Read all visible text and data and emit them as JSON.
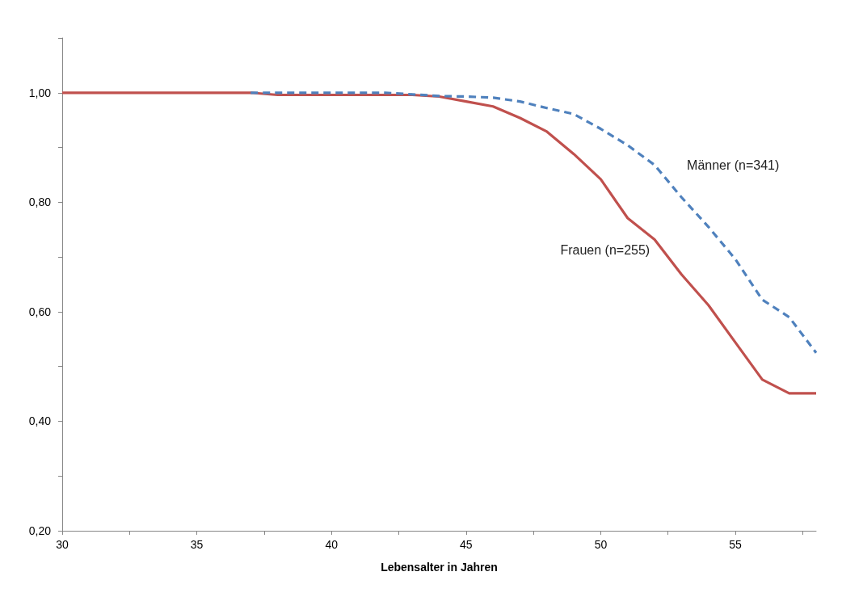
{
  "chart_data": {
    "type": "line",
    "xlabel": "Lebensalter in Jahren",
    "x": [
      30,
      31,
      32,
      33,
      34,
      35,
      36,
      37,
      38,
      39,
      40,
      41,
      42,
      43,
      44,
      45,
      46,
      47,
      48,
      49,
      50,
      51,
      52,
      53,
      54,
      55,
      56,
      57,
      58
    ],
    "series": [
      {
        "name": "Männer (n=341)",
        "color": "#4f81bd",
        "line_style": "dashed",
        "values": [
          null,
          null,
          null,
          null,
          null,
          null,
          null,
          1.0,
          1.0,
          1.0,
          1.0,
          1.0,
          1.0,
          0.997,
          0.994,
          0.993,
          0.991,
          0.984,
          0.972,
          0.961,
          0.934,
          0.904,
          0.868,
          0.809,
          0.755,
          0.696,
          0.622,
          0.59,
          0.525
        ]
      },
      {
        "name": "Frauen (n=255)",
        "color": "#c0504d",
        "line_style": "solid",
        "values": [
          1.0,
          1.0,
          1.0,
          1.0,
          1.0,
          1.0,
          1.0,
          1.0,
          0.996,
          0.996,
          0.996,
          0.996,
          0.996,
          0.996,
          0.993,
          0.984,
          0.975,
          0.954,
          0.929,
          0.888,
          0.842,
          0.771,
          0.732,
          0.668,
          0.612,
          0.544,
          0.476,
          0.451,
          0.451
        ]
      }
    ],
    "xlim": [
      30,
      58
    ],
    "xticks": [
      30,
      {
        "value": 32.5,
        "label": null
      },
      35,
      {
        "value": 37.5,
        "label": null
      },
      40,
      {
        "value": 42.5,
        "label": null
      },
      45,
      {
        "value": 47.5,
        "label": null
      },
      50,
      {
        "value": 52.5,
        "label": null
      },
      55,
      {
        "value": 57.5,
        "label": null
      }
    ],
    "ylim": [
      0.2,
      1.1
    ],
    "yticks": [
      {
        "value": 0.2,
        "label": "0,20"
      },
      {
        "value": 0.3,
        "label": null
      },
      {
        "value": 0.4,
        "label": "0,40"
      },
      {
        "value": 0.5,
        "label": null
      },
      {
        "value": 0.6,
        "label": "0,60"
      },
      {
        "value": 0.7,
        "label": null
      },
      {
        "value": 0.8,
        "label": "0,80"
      },
      {
        "value": 0.9,
        "label": null
      },
      {
        "value": 1.0,
        "label": "1,00"
      },
      {
        "value": 1.1,
        "label": null
      }
    ],
    "grid": false,
    "legend": false,
    "marker": "none"
  }
}
